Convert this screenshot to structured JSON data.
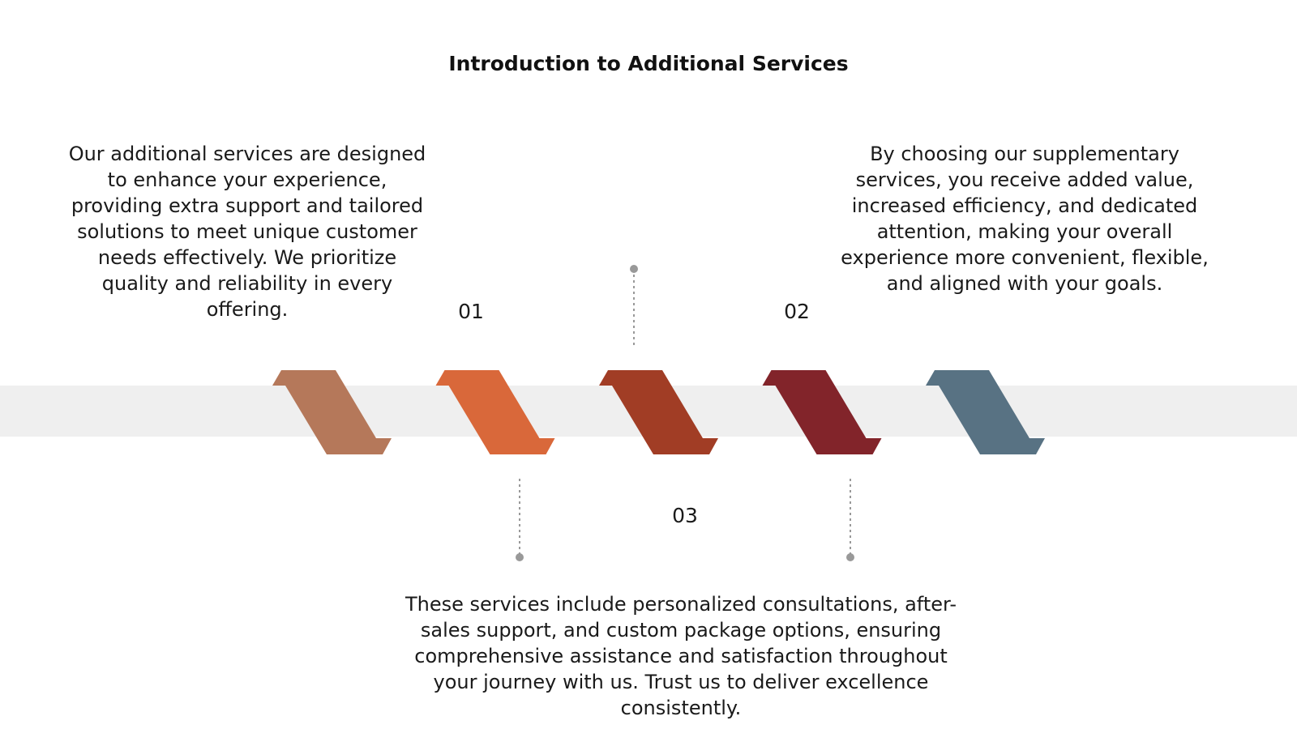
{
  "title": "Introduction to Additional Services",
  "items": [
    {
      "number": "01",
      "text": "Our additional services are designed to enhance your experience, providing extra support and tailored solutions to meet unique customer needs effectively. We prioritize quality and reliability in every offering."
    },
    {
      "number": "02",
      "text": "By choosing our supplementary services, you receive added value, increased efficiency, and dedicated attention, making your overall experience more convenient, flexible, and aligned with your goals."
    },
    {
      "number": "03",
      "text": "These services include personalized consultations, after-sales support, and custom package options, ensuring comprehensive assistance and satisfaction throughout your journey with us. Trust us to deliver excellence consistently."
    }
  ]
}
